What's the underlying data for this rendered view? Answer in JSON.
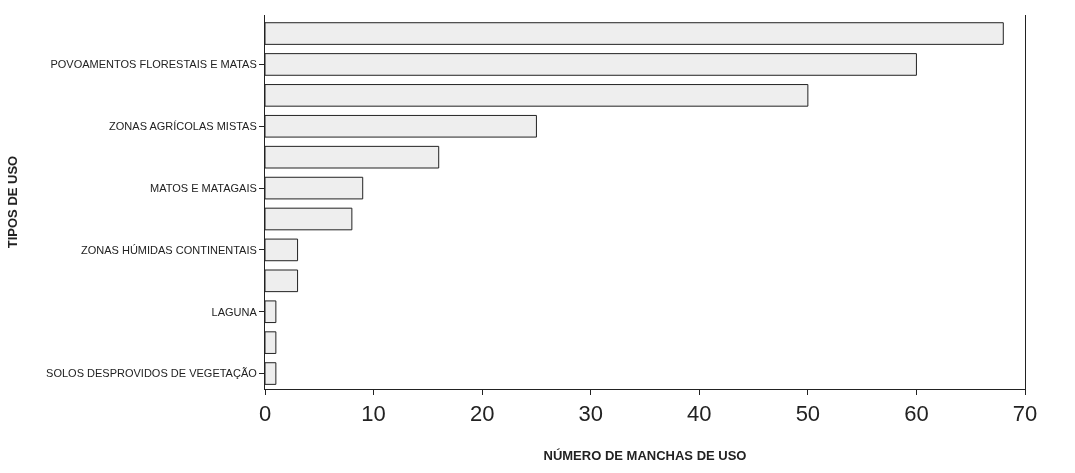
{
  "chart_data": {
    "type": "bar",
    "orientation": "horizontal",
    "xlabel": "NÚMERO DE MANCHAS DE USO",
    "ylabel": "TIPOS DE USO",
    "categories": [
      null,
      "POVOAMENTOS FLORESTAIS E MATAS",
      null,
      "ZONAS AGRÍCOLAS MISTAS",
      null,
      "MATOS E MATAGAIS",
      null,
      "ZONAS HÚMIDAS CONTINENTAIS",
      null,
      "LAGUNA",
      null,
      "SOLOS DESPROVIDOS DE VEGETAÇÃO"
    ],
    "values": [
      68,
      60,
      50,
      25,
      16,
      9,
      8,
      3,
      3,
      1,
      1,
      1
    ],
    "color": "#eeeeee",
    "xlim": [
      0,
      70
    ],
    "xticks": [
      0,
      10,
      20,
      30,
      40,
      50,
      60,
      70
    ]
  }
}
